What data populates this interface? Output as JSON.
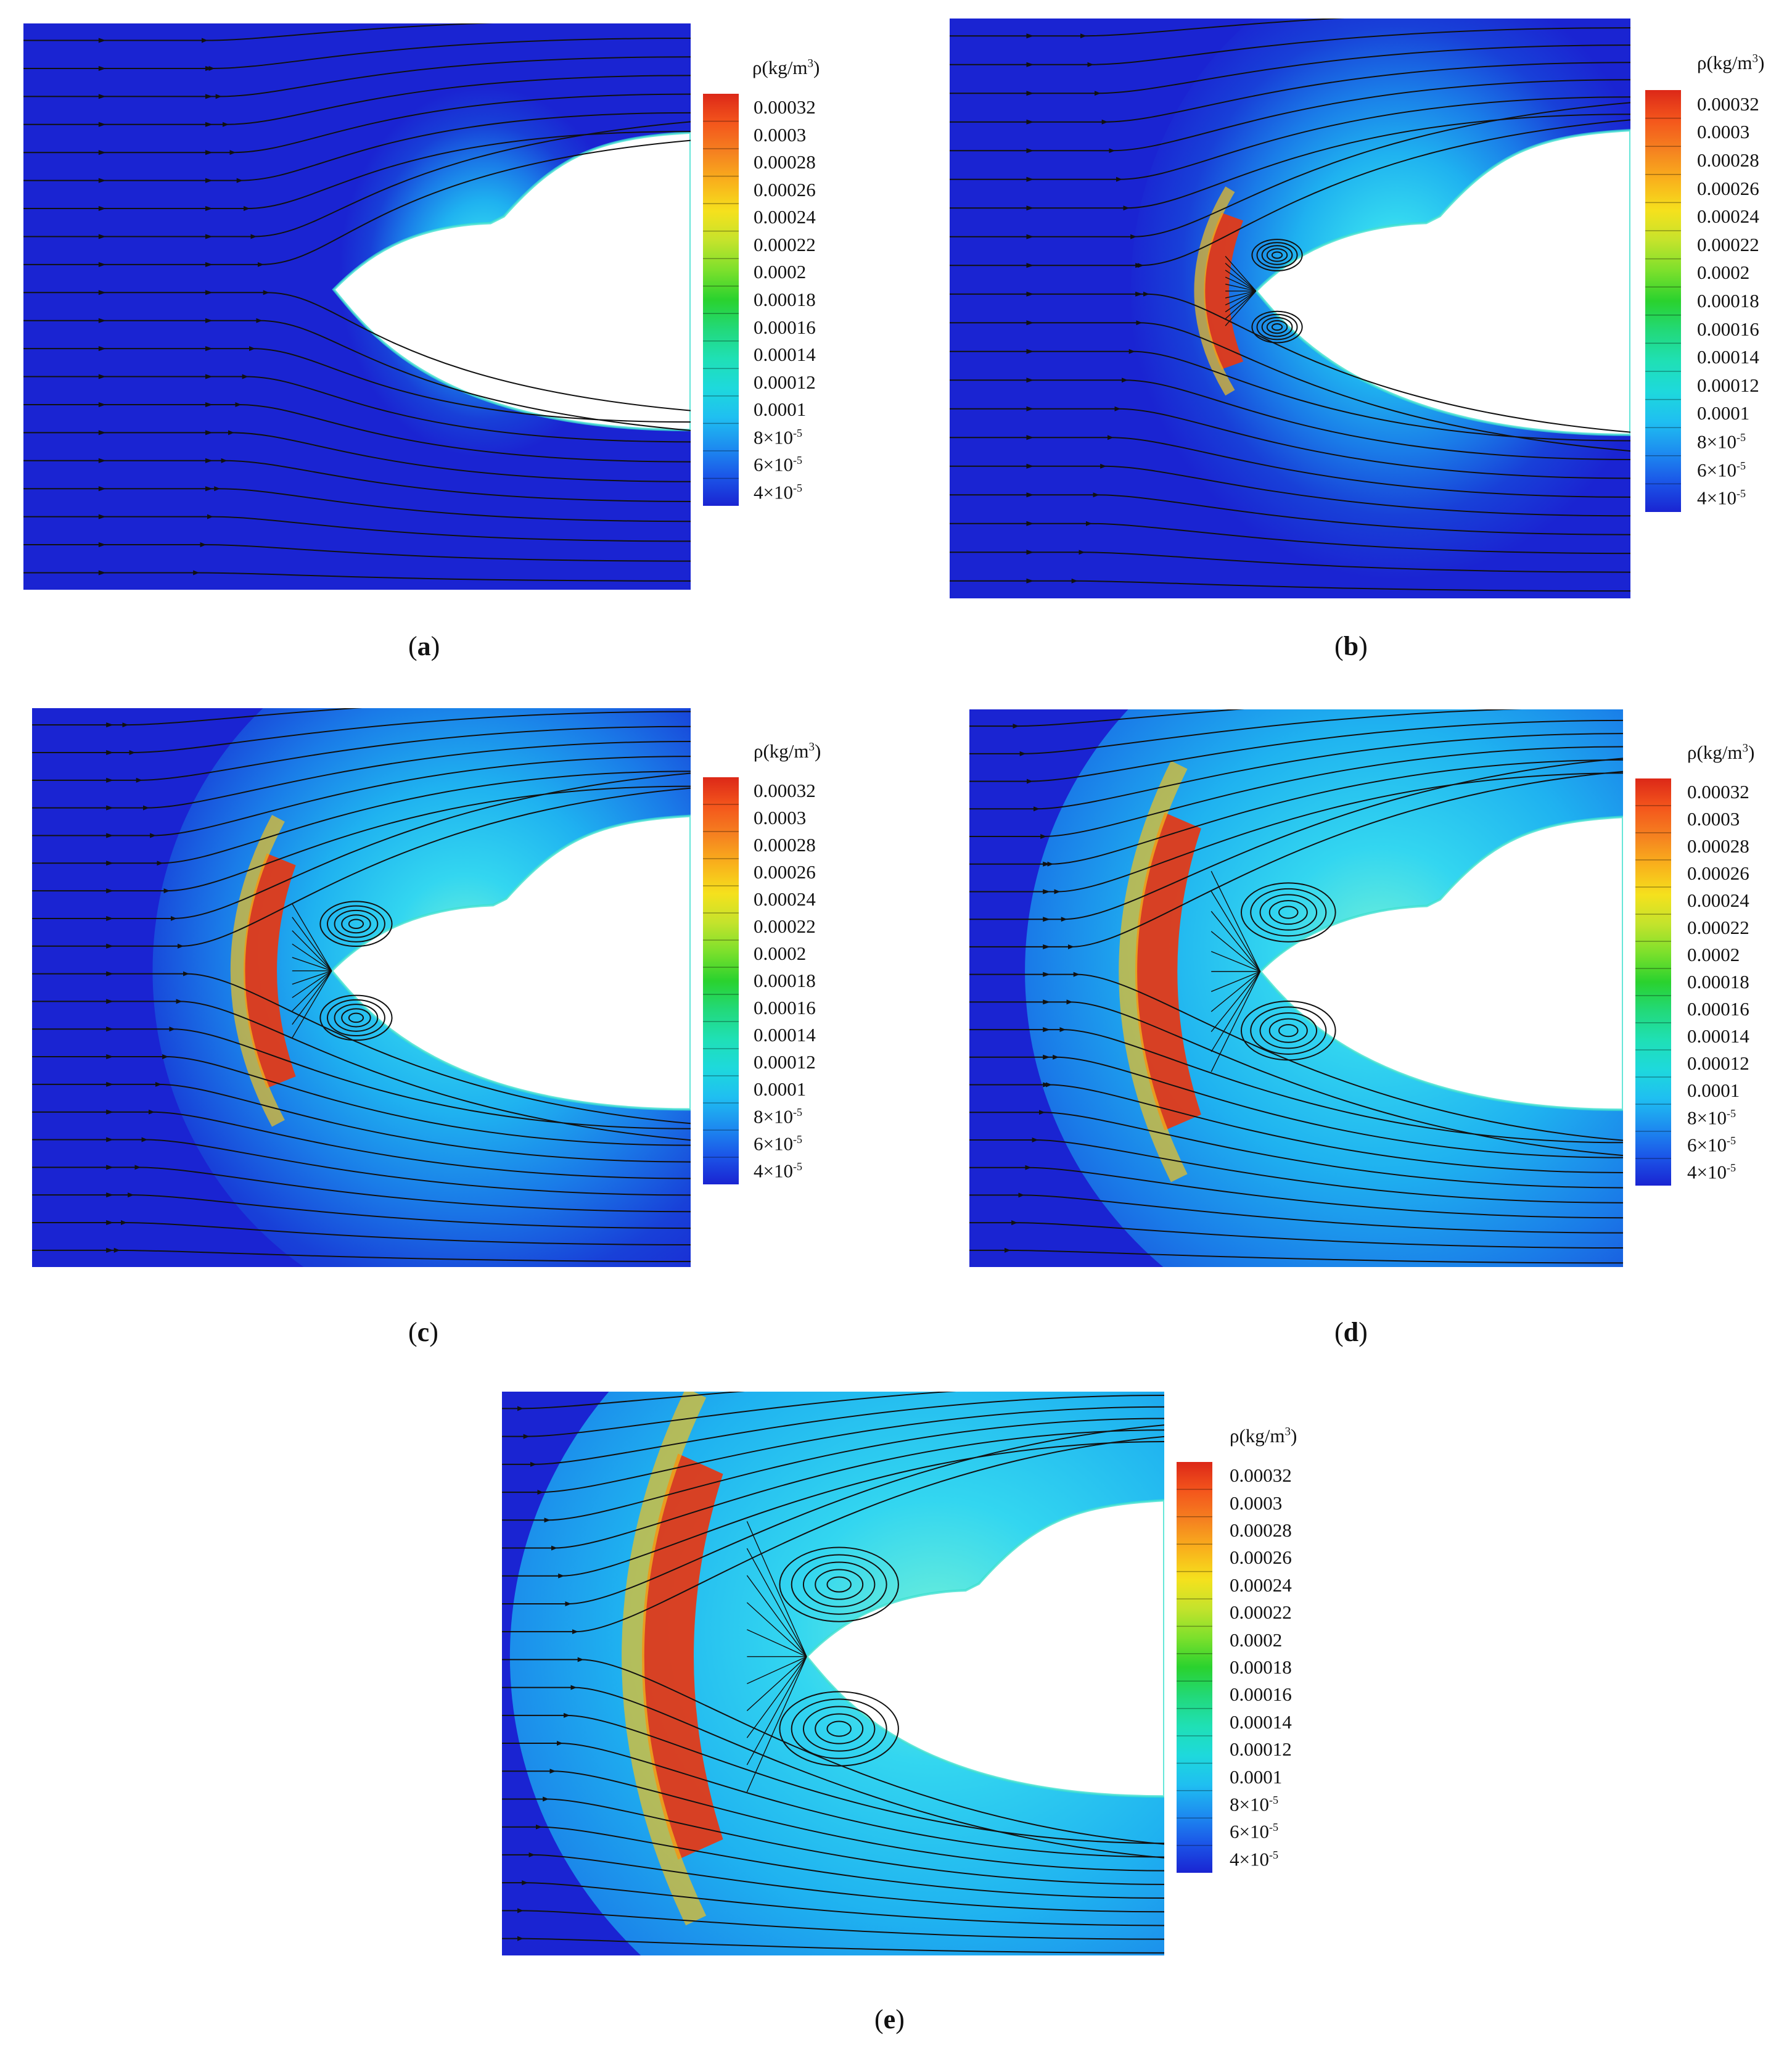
{
  "colorbar": {
    "title_prefix": "ρ(kg/m",
    "title_exp": "3",
    "title_suffix": ")",
    "ticks": [
      "0.00032",
      "0.0003",
      "0.00028",
      "0.00026",
      "0.00024",
      "0.00022",
      "0.0002",
      "0.00018",
      "0.00016",
      "0.00014",
      "0.00012",
      "0.0001",
      "8×10",
      "6×10",
      "4×10"
    ],
    "tick_exps": [
      "",
      "",
      "",
      "",
      "",
      "",
      "",
      "",
      "",
      "",
      "",
      "",
      "-5",
      "-5",
      "-5"
    ],
    "colors": [
      "#dc2818",
      "#f4561c",
      "#f58220",
      "#f9b21c",
      "#f5e11d",
      "#c4e32c",
      "#7ce02c",
      "#2ad22e",
      "#22d97a",
      "#1fe0b5",
      "#1ed9dc",
      "#1fbff1",
      "#1d8df0",
      "#1b56e8",
      "#1a24d2"
    ]
  },
  "panels": [
    {
      "label": "a",
      "open": "(",
      "close": ")"
    },
    {
      "label": "b",
      "open": "(",
      "close": ")"
    },
    {
      "label": "c",
      "open": "(",
      "close": ")"
    },
    {
      "label": "d",
      "open": "(",
      "close": ")"
    },
    {
      "label": "e",
      "open": "(",
      "close": ")"
    }
  ]
}
